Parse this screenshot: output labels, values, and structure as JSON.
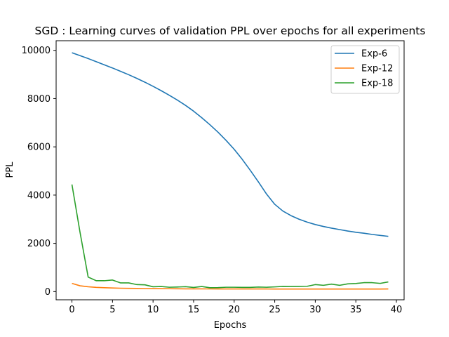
{
  "chart_data": {
    "type": "line",
    "title": "SGD : Learning curves of validation PPL over epochs for all experiments",
    "xlabel": "Epochs",
    "ylabel": "PPL",
    "xlim": [
      -1.95,
      40.95
    ],
    "ylim": [
      -340,
      10400
    ],
    "xticks": [
      0,
      5,
      10,
      15,
      20,
      25,
      30,
      35,
      40
    ],
    "yticks": [
      0,
      2000,
      4000,
      6000,
      8000,
      10000
    ],
    "grid": false,
    "legend_position": "top-right",
    "x": [
      0,
      1,
      2,
      3,
      4,
      5,
      6,
      7,
      8,
      9,
      10,
      11,
      12,
      13,
      14,
      15,
      16,
      17,
      18,
      19,
      20,
      21,
      22,
      23,
      24,
      25,
      26,
      27,
      28,
      29,
      30,
      31,
      32,
      33,
      34,
      35,
      36,
      37,
      38,
      39
    ],
    "series": [
      {
        "name": "Exp-6",
        "color": "#1f77b4",
        "values": [
          9900,
          9780,
          9660,
          9530,
          9400,
          9270,
          9130,
          8990,
          8840,
          8680,
          8510,
          8330,
          8140,
          7940,
          7720,
          7480,
          7210,
          6920,
          6610,
          6270,
          5900,
          5480,
          5020,
          4540,
          4040,
          3620,
          3340,
          3150,
          3000,
          2880,
          2780,
          2700,
          2630,
          2570,
          2510,
          2460,
          2420,
          2370,
          2330,
          2290
        ]
      },
      {
        "name": "Exp-12",
        "color": "#ff7f0e",
        "values": [
          340,
          240,
          200,
          175,
          160,
          150,
          140,
          135,
          130,
          126,
          123,
          120,
          118,
          116,
          114,
          113,
          112,
          111,
          110,
          110,
          109,
          109,
          108,
          108,
          108,
          107,
          107,
          107,
          107,
          106,
          106,
          106,
          106,
          106,
          106,
          106,
          106,
          107,
          107,
          108
        ]
      },
      {
        "name": "Exp-18",
        "color": "#2ca02c",
        "values": [
          4440,
          2450,
          600,
          450,
          450,
          480,
          360,
          360,
          290,
          280,
          200,
          210,
          180,
          190,
          205,
          170,
          210,
          160,
          165,
          180,
          180,
          175,
          175,
          190,
          180,
          195,
          215,
          210,
          215,
          220,
          290,
          260,
          310,
          260,
          320,
          335,
          370,
          370,
          340,
          400
        ]
      }
    ]
  }
}
